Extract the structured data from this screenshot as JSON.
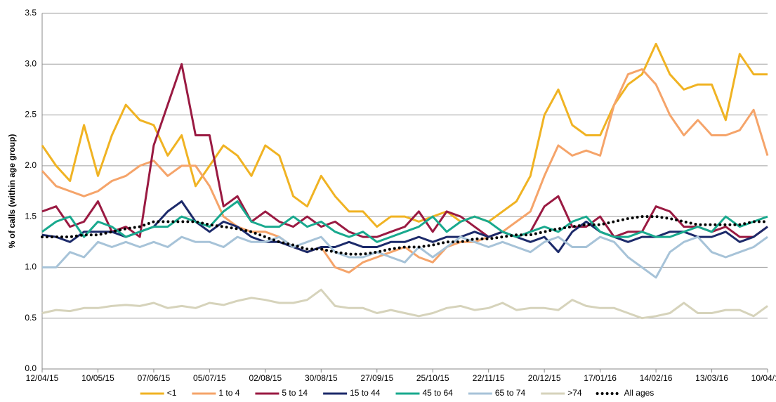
{
  "chart_data": {
    "type": "line",
    "y_label": "% of calls (within age group)",
    "categories": [
      "12/04/15",
      null,
      null,
      null,
      "10/05/15",
      null,
      null,
      null,
      "07/06/15",
      null,
      null,
      null,
      "05/07/15",
      null,
      null,
      null,
      "02/08/15",
      null,
      null,
      null,
      "30/08/15",
      null,
      null,
      null,
      "27/09/15",
      null,
      null,
      null,
      "25/10/15",
      null,
      null,
      null,
      "22/11/15",
      null,
      null,
      null,
      "20/12/15",
      null,
      null,
      null,
      "17/01/16",
      null,
      null,
      null,
      "14/02/16",
      null,
      null,
      null,
      "13/03/16",
      null,
      null,
      null,
      "10/04/16"
    ],
    "ylim": [
      0,
      3.5
    ],
    "yticks": [
      {
        "value": 0,
        "label": "0.0"
      },
      {
        "value": 0.5,
        "label": "0.5"
      },
      {
        "value": 1,
        "label": "1.0"
      },
      {
        "value": 1.5,
        "label": "1.5"
      },
      {
        "value": 2,
        "label": "2.0"
      },
      {
        "value": 2.5,
        "label": "2.5"
      },
      {
        "value": 3,
        "label": "3.0"
      },
      {
        "value": 3.5,
        "label": "3.5"
      }
    ],
    "grid": true,
    "legend": "bottom",
    "series": [
      {
        "name": "<1",
        "color": "#f0b323",
        "values": [
          2.2,
          2.0,
          1.85,
          2.4,
          1.9,
          2.3,
          2.6,
          2.45,
          2.4,
          2.1,
          2.3,
          1.8,
          2.0,
          2.2,
          2.1,
          1.9,
          2.2,
          2.1,
          1.7,
          1.6,
          1.9,
          1.7,
          1.55,
          1.55,
          1.4,
          1.5,
          1.5,
          1.45,
          1.5,
          1.55,
          1.45,
          1.5,
          1.45,
          1.55,
          1.65,
          1.9,
          2.5,
          2.75,
          2.4,
          2.3,
          2.3,
          2.6,
          2.8,
          2.9,
          3.2,
          2.9,
          2.75,
          2.8,
          2.8,
          2.45,
          3.1,
          2.9,
          2.9
        ]
      },
      {
        "name": "1 to 4",
        "color": "#f5a46a",
        "values": [
          1.95,
          1.8,
          1.75,
          1.7,
          1.75,
          1.85,
          1.9,
          2.0,
          2.05,
          1.9,
          2.0,
          2.0,
          1.8,
          1.5,
          1.4,
          1.35,
          1.35,
          1.3,
          1.2,
          1.15,
          1.2,
          1.0,
          0.95,
          1.05,
          1.1,
          1.15,
          1.2,
          1.1,
          1.05,
          1.2,
          1.25,
          1.25,
          1.3,
          1.35,
          1.45,
          1.55,
          1.9,
          2.2,
          2.1,
          2.15,
          2.1,
          2.6,
          2.9,
          2.95,
          2.8,
          2.5,
          2.3,
          2.45,
          2.3,
          2.3,
          2.35,
          2.55,
          2.1
        ]
      },
      {
        "name": "5 to 14",
        "color": "#9a1a42",
        "values": [
          1.55,
          1.6,
          1.4,
          1.45,
          1.65,
          1.35,
          1.4,
          1.3,
          2.2,
          2.6,
          3.0,
          2.3,
          2.3,
          1.6,
          1.7,
          1.45,
          1.55,
          1.45,
          1.4,
          1.5,
          1.4,
          1.45,
          1.35,
          1.3,
          1.3,
          1.35,
          1.4,
          1.55,
          1.35,
          1.55,
          1.5,
          1.4,
          1.3,
          1.35,
          1.3,
          1.35,
          1.6,
          1.7,
          1.4,
          1.4,
          1.5,
          1.3,
          1.35,
          1.35,
          1.6,
          1.55,
          1.4,
          1.4,
          1.35,
          1.4,
          1.3,
          1.3,
          1.4
        ]
      },
      {
        "name": "15 to 44",
        "color": "#1c2a6a",
        "values": [
          1.32,
          1.3,
          1.25,
          1.35,
          1.35,
          1.35,
          1.3,
          1.35,
          1.4,
          1.55,
          1.65,
          1.45,
          1.35,
          1.45,
          1.4,
          1.3,
          1.25,
          1.25,
          1.2,
          1.15,
          1.2,
          1.2,
          1.25,
          1.2,
          1.2,
          1.25,
          1.25,
          1.3,
          1.25,
          1.3,
          1.3,
          1.35,
          1.3,
          1.35,
          1.3,
          1.25,
          1.3,
          1.15,
          1.35,
          1.45,
          1.35,
          1.3,
          1.25,
          1.3,
          1.3,
          1.35,
          1.35,
          1.3,
          1.3,
          1.35,
          1.25,
          1.3,
          1.4
        ]
      },
      {
        "name": "45 to 64",
        "color": "#19a98e",
        "values": [
          1.35,
          1.45,
          1.5,
          1.3,
          1.45,
          1.4,
          1.3,
          1.35,
          1.4,
          1.4,
          1.5,
          1.45,
          1.4,
          1.55,
          1.65,
          1.45,
          1.4,
          1.4,
          1.5,
          1.4,
          1.45,
          1.35,
          1.3,
          1.35,
          1.25,
          1.3,
          1.35,
          1.4,
          1.5,
          1.35,
          1.45,
          1.5,
          1.45,
          1.35,
          1.3,
          1.35,
          1.4,
          1.35,
          1.45,
          1.5,
          1.35,
          1.3,
          1.3,
          1.35,
          1.3,
          1.3,
          1.35,
          1.4,
          1.35,
          1.5,
          1.4,
          1.45,
          1.5
        ]
      },
      {
        "name": "65 to 74",
        "color": "#a7c3d8",
        "values": [
          1.0,
          1.0,
          1.15,
          1.1,
          1.25,
          1.2,
          1.25,
          1.2,
          1.25,
          1.2,
          1.3,
          1.25,
          1.25,
          1.2,
          1.3,
          1.25,
          1.25,
          1.3,
          1.2,
          1.25,
          1.3,
          1.15,
          1.1,
          1.1,
          1.15,
          1.1,
          1.05,
          1.2,
          1.1,
          1.2,
          1.3,
          1.25,
          1.2,
          1.25,
          1.2,
          1.15,
          1.25,
          1.3,
          1.2,
          1.2,
          1.3,
          1.25,
          1.1,
          1.0,
          0.9,
          1.15,
          1.25,
          1.3,
          1.15,
          1.1,
          1.15,
          1.2,
          1.3
        ]
      },
      {
        "name": ">74",
        "color": "#d6d3bb",
        "values": [
          0.55,
          0.58,
          0.57,
          0.6,
          0.6,
          0.62,
          0.63,
          0.62,
          0.65,
          0.6,
          0.62,
          0.6,
          0.65,
          0.63,
          0.67,
          0.7,
          0.68,
          0.65,
          0.65,
          0.68,
          0.78,
          0.62,
          0.6,
          0.6,
          0.55,
          0.58,
          0.55,
          0.52,
          0.55,
          0.6,
          0.62,
          0.58,
          0.6,
          0.65,
          0.58,
          0.6,
          0.6,
          0.58,
          0.68,
          0.62,
          0.6,
          0.6,
          0.55,
          0.5,
          0.52,
          0.55,
          0.65,
          0.55,
          0.55,
          0.58,
          0.58,
          0.52,
          0.62
        ]
      },
      {
        "name": "All ages",
        "color": "#000000",
        "line_style": "dotted",
        "values": [
          1.3,
          1.3,
          1.3,
          1.32,
          1.32,
          1.35,
          1.38,
          1.4,
          1.45,
          1.45,
          1.45,
          1.45,
          1.42,
          1.4,
          1.38,
          1.35,
          1.3,
          1.25,
          1.22,
          1.18,
          1.18,
          1.15,
          1.13,
          1.13,
          1.15,
          1.18,
          1.2,
          1.2,
          1.22,
          1.25,
          1.25,
          1.28,
          1.28,
          1.3,
          1.32,
          1.32,
          1.35,
          1.38,
          1.4,
          1.42,
          1.42,
          1.45,
          1.48,
          1.5,
          1.5,
          1.48,
          1.45,
          1.42,
          1.42,
          1.42,
          1.42,
          1.45,
          1.45
        ]
      }
    ]
  }
}
